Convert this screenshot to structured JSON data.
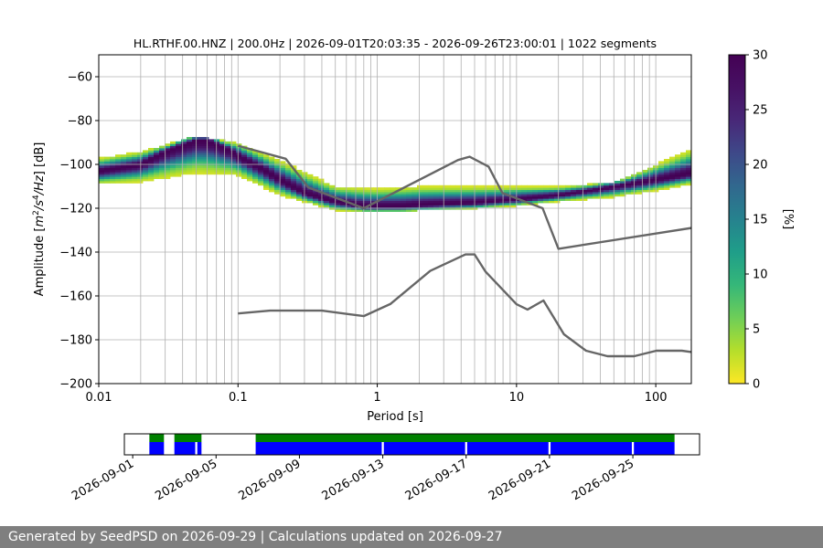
{
  "chart_data": [
    {
      "type": "heatmap",
      "title": "HL.RTHF.00.HNZ | 200.0Hz | 2026-09-01T20:03:35 - 2026-09-26T23:00:01 | 1022 segments",
      "xlabel": "Period [s]",
      "ylabel_parts": [
        "Amplitude [",
        "m",
        "2",
        "/",
        "s",
        "4",
        "/",
        "Hz",
        "] [dB]"
      ],
      "x_scale": "log",
      "xlim": [
        0.01,
        180
      ],
      "ylim": [
        -200,
        -50
      ],
      "x_ticks": [
        {
          "value": 0.01,
          "label": "0.01"
        },
        {
          "value": 0.1,
          "label": "0.1"
        },
        {
          "value": 1,
          "label": "1"
        },
        {
          "value": 10,
          "label": "10"
        },
        {
          "value": 100,
          "label": "100"
        }
      ],
      "y_ticks": [
        {
          "value": -60,
          "label": "−60"
        },
        {
          "value": -80,
          "label": "−80"
        },
        {
          "value": -100,
          "label": "−100"
        },
        {
          "value": -120,
          "label": "−120"
        },
        {
          "value": -140,
          "label": "−140"
        },
        {
          "value": -160,
          "label": "−160"
        },
        {
          "value": -180,
          "label": "−180"
        },
        {
          "value": -200,
          "label": "−200"
        }
      ],
      "grid": true,
      "colormap": "viridis_r",
      "colorbar": {
        "label": "[%]",
        "range": [
          0,
          30
        ],
        "ticks": [
          {
            "value": 0,
            "label": "0"
          },
          {
            "value": 5,
            "label": "5"
          },
          {
            "value": 10,
            "label": "10"
          },
          {
            "value": 15,
            "label": "15"
          },
          {
            "value": 20,
            "label": "20"
          },
          {
            "value": 25,
            "label": "25"
          },
          {
            "value": 30,
            "label": "30"
          }
        ]
      },
      "mode_curve": {
        "period": [
          0.01,
          0.02,
          0.03,
          0.04,
          0.05,
          0.06,
          0.08,
          0.1,
          0.15,
          0.2,
          0.3,
          0.5,
          0.8,
          1,
          1.5,
          2,
          3,
          5,
          10,
          20,
          50,
          100,
          180
        ],
        "db": [
          -103,
          -100,
          -94,
          -91,
          -89,
          -89,
          -92,
          -96,
          -102,
          -107,
          -113,
          -117,
          -119,
          -119,
          -119,
          -118.5,
          -118,
          -117.5,
          -116,
          -114,
          -110,
          -107,
          -104
        ]
      },
      "spread_upper": {
        "period": [
          0.01,
          0.02,
          0.05,
          0.1,
          0.2,
          0.5,
          1,
          2,
          5,
          10,
          20,
          50,
          100,
          180
        ],
        "db": [
          -97,
          -94,
          -87,
          -90,
          -98,
          -110,
          -111,
          -110,
          -110,
          -110,
          -110,
          -108,
          -100,
          -93
        ]
      },
      "spread_lower": {
        "period": [
          0.01,
          0.02,
          0.05,
          0.1,
          0.2,
          0.5,
          1,
          2,
          5,
          10,
          20,
          50,
          100,
          180
        ],
        "db": [
          -109,
          -108,
          -104,
          -105,
          -114,
          -121,
          -122,
          -121,
          -120,
          -119,
          -117,
          -115,
          -112,
          -109
        ]
      },
      "noise_model_high": {
        "period": [
          0.1,
          0.22,
          0.32,
          0.8,
          3.8,
          4.6,
          6.3,
          7.9,
          15.4,
          20,
          180
        ],
        "db": [
          -91.5,
          -97.4,
          -110.5,
          -120,
          -98,
          -96.5,
          -101,
          -113,
          -120,
          -138.5,
          -129
        ]
      },
      "noise_model_low": {
        "period": [
          0.1,
          0.17,
          0.4,
          0.8,
          1.24,
          2.4,
          4.3,
          5,
          6,
          10,
          12,
          15.6,
          21.9,
          31.6,
          45,
          70,
          101,
          154,
          180
        ],
        "db": [
          -168,
          -166.7,
          -166.7,
          -169.2,
          -163.7,
          -148.6,
          -141.1,
          -141.1,
          -149,
          -163.8,
          -166.2,
          -162.1,
          -177.5,
          -185,
          -187.5,
          -187.5,
          -185,
          -185,
          -185.6
        ]
      }
    },
    {
      "type": "timeline",
      "x_ticks": [
        "2026-09-01",
        "2026-09-05",
        "2026-09-09",
        "2026-09-13",
        "2026-09-17",
        "2026-09-21",
        "2026-09-25"
      ],
      "x_tick_days": [
        0,
        4,
        8,
        12,
        16,
        20,
        24
      ],
      "xlim_days": [
        -0.4,
        27.2
      ],
      "coverage_green": [
        [
          0.8,
          1.5
        ],
        [
          2.0,
          3.3
        ],
        [
          5.9,
          26.0
        ]
      ],
      "coverage_blue": [
        [
          0.8,
          1.5
        ],
        [
          2.0,
          3.0
        ],
        [
          3.1,
          3.3
        ],
        [
          5.9,
          11.95
        ],
        [
          12.05,
          15.95
        ],
        [
          16.05,
          19.95
        ],
        [
          20.05,
          23.95
        ],
        [
          24.05,
          26.0
        ]
      ],
      "colors": {
        "green": "#008000",
        "blue": "#0000ff"
      }
    }
  ],
  "footer": {
    "text": "Generated by SeedPSD on 2026-09-29 | Calculations updated on 2026-09-27"
  }
}
